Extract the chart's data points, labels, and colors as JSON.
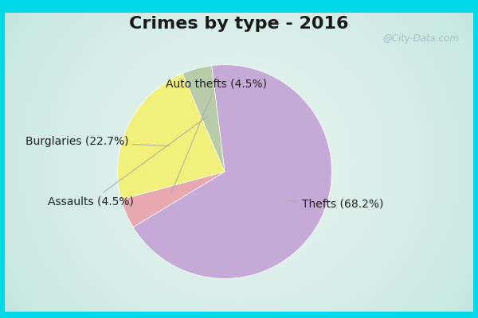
{
  "title": "Crimes by type - 2016",
  "slices": [
    {
      "label": "Thefts",
      "pct": 68.2,
      "color": "#c5aad8"
    },
    {
      "label": "Auto thefts",
      "pct": 4.5,
      "color": "#e8a8b0"
    },
    {
      "label": "Burglaries",
      "pct": 22.7,
      "color": "#f0f07a"
    },
    {
      "label": "Assaults",
      "pct": 4.5,
      "color": "#b8ccaa"
    }
  ],
  "bg_color_outer": "#00d8e8",
  "bg_color_inner_edge": "#c8ece0",
  "bg_color_inner_center": "#eef8f4",
  "title_fontsize": 16,
  "label_fontsize": 10,
  "startangle": 97,
  "watermark": "@City-Data.com",
  "label_annotations": [
    {
      "label": "Thefts (68.2%)",
      "xt": 0.72,
      "yt": -0.3,
      "ha": "left",
      "r": 0.62
    },
    {
      "label": "Auto thefts (4.5%)",
      "xt": -0.08,
      "yt": 0.82,
      "ha": "center",
      "r": 0.55
    },
    {
      "label": "Burglaries (22.7%)",
      "xt": -0.9,
      "yt": 0.28,
      "ha": "right",
      "r": 0.55
    },
    {
      "label": "Assaults (4.5%)",
      "xt": -0.85,
      "yt": -0.28,
      "ha": "right",
      "r": 0.55
    }
  ]
}
